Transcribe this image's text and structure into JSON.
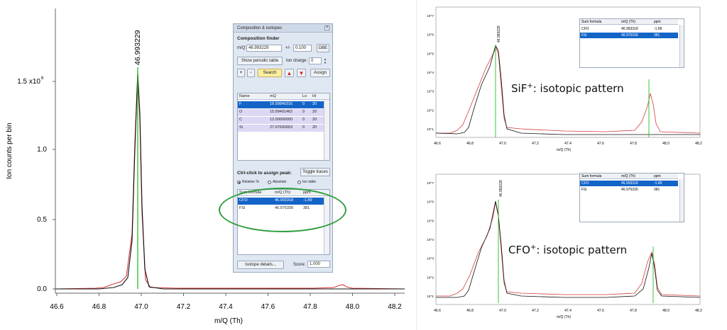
{
  "main_plot": {
    "peak_label": "46.993229",
    "xlabel": "m/Q (Th)",
    "ylabel": "Ion counts per bin",
    "x_ticks": [
      "46.6",
      "46.8",
      "47.0",
      "47.2",
      "47.4",
      "47.6",
      "47.8",
      "48.0",
      "48.2"
    ],
    "y_ticks": [
      "0.0",
      "0.5",
      "1.0"
    ],
    "y_top_tick_mantissa": "1.5 x10",
    "y_top_tick_exp": "6"
  },
  "chart_data": [
    {
      "type": "line",
      "xlabel": "m/Q (Th)",
      "ylabel": "Ion counts per bin",
      "xlim": [
        46.55,
        48.3
      ],
      "ylim": [
        -0.03,
        2.0
      ],
      "y_unit_multiplier": "x10^6",
      "peak_marker_x": 46.993229,
      "series": [
        {
          "x": [
            46.55,
            46.8,
            46.85,
            46.9,
            46.95,
            46.97,
            46.99,
            47.0,
            47.02,
            47.05,
            47.1,
            47.2,
            47.5,
            47.8,
            47.95,
            47.98,
            48.0,
            48.05,
            48.3
          ],
          "y": [
            0.0,
            0.005,
            0.015,
            0.04,
            0.25,
            0.8,
            1.55,
            1.2,
            0.3,
            0.03,
            0.01,
            0.005,
            0.002,
            0.003,
            0.01,
            0.03,
            0.015,
            0.004,
            0.0
          ]
        }
      ]
    },
    {
      "type": "line",
      "title": "SiF+: isotopic pattern",
      "xlabel": "m/Q (Th)",
      "y_scale": "log",
      "xlim": [
        46.55,
        48.3
      ],
      "peak_marker_x": [
        46.975,
        47.97
      ],
      "x_ticks": [
        "46.6",
        "46.8",
        "47.0",
        "47.2",
        "47.4",
        "47.6",
        "47.8",
        "48.0",
        "48.2"
      ],
      "y_ticks": [
        "10^7",
        "10^6",
        "10^5",
        "10^4",
        "10^3",
        "10^2",
        "10^1"
      ]
    },
    {
      "type": "line",
      "title": "CFO+: isotopic pattern",
      "xlabel": "m/Q (Th)",
      "y_scale": "log",
      "xlim": [
        46.55,
        48.3
      ],
      "peak_marker_x": [
        46.993,
        47.99
      ],
      "x_ticks": [
        "46.6",
        "46.8",
        "47.0",
        "47.2",
        "47.4",
        "47.6",
        "47.8",
        "48.0",
        "48.2"
      ],
      "y_ticks": [
        "10^7",
        "10^6",
        "10^5",
        "10^4",
        "10^3",
        "10^2",
        "10^1"
      ]
    }
  ],
  "panel": {
    "title": "Composition & isotopes",
    "close": "X",
    "finder_title": "Composition finder",
    "mq_label": "m/Q:",
    "mq_value": "46.993229",
    "tol_label": "+/-",
    "tol_value": "0.100",
    "dbe_button": "DBE",
    "periodic_button": "Show periodic table",
    "ion_charge_label": "Ion charge:",
    "ion_charge_value": "0",
    "add_button": "+",
    "remove_button": "-",
    "search_button": "Search",
    "assign_button": "Assign",
    "elements_headers": [
      "Name",
      "mQ",
      "Lo",
      "Hi"
    ],
    "elements": [
      {
        "name": "F",
        "mq": "18.99840316",
        "lo": "0",
        "hi": "20"
      },
      {
        "name": "O",
        "mq": "15.99491462",
        "lo": "0",
        "hi": "20"
      },
      {
        "name": "C",
        "mq": "12.00000000",
        "lo": "0",
        "hi": "20"
      },
      {
        "name": "Si",
        "mq": "27.97692653",
        "lo": "0",
        "hi": "20"
      }
    ],
    "ctrl_click_label": "Ctrl-click to assign peak:",
    "toggle_button": "Toggle traces",
    "radio_options": [
      "Relative %",
      "Absolute",
      "Ion table"
    ],
    "results_headers": [
      "Sum formula",
      "m/Q (Th)",
      "ppm"
    ],
    "results": [
      {
        "formula": "CFO",
        "mq": "46.993318",
        "ppm": "-1.89"
      },
      {
        "formula": "FSi",
        "mq": "46.975330",
        "ppm": "381"
      }
    ],
    "isotope_button": "Isotope details...",
    "score_label": "Score:",
    "score_value": "1.000"
  },
  "inset_top": {
    "annotation_main": "SiF",
    "annotation_sup": "+",
    "annotation_rest": ": isotopic pattern",
    "peak_label": "46.993229",
    "xlabel": "m/Q (Th)",
    "headers": [
      "Sum formula",
      "m/Q (Th)",
      "ppm"
    ],
    "rows": [
      {
        "formula": "CFO",
        "mq": "46.993318",
        "ppm": "-1.89"
      },
      {
        "formula": "FSi",
        "mq": "46.975330",
        "ppm": "381"
      }
    ]
  },
  "inset_bottom": {
    "annotation_main": "CFO",
    "annotation_sup": "+",
    "annotation_rest": ": isotopic pattern",
    "peak_label": "46.993229",
    "xlabel": "m/Q (Th)",
    "headers": [
      "Sum formula",
      "m/Q (Th)",
      "ppm"
    ],
    "rows": [
      {
        "formula": "CFO",
        "mq": "46.993318",
        "ppm": "-1.89"
      },
      {
        "formula": "FSi",
        "mq": "46.975330",
        "ppm": "381"
      }
    ]
  },
  "colors": {
    "trace_black": "#111111",
    "trace_red": "#d63a3a",
    "marker_green": "#22c022",
    "highlight_green": "#2e9e3e",
    "selection_blue": "#1464c8"
  }
}
